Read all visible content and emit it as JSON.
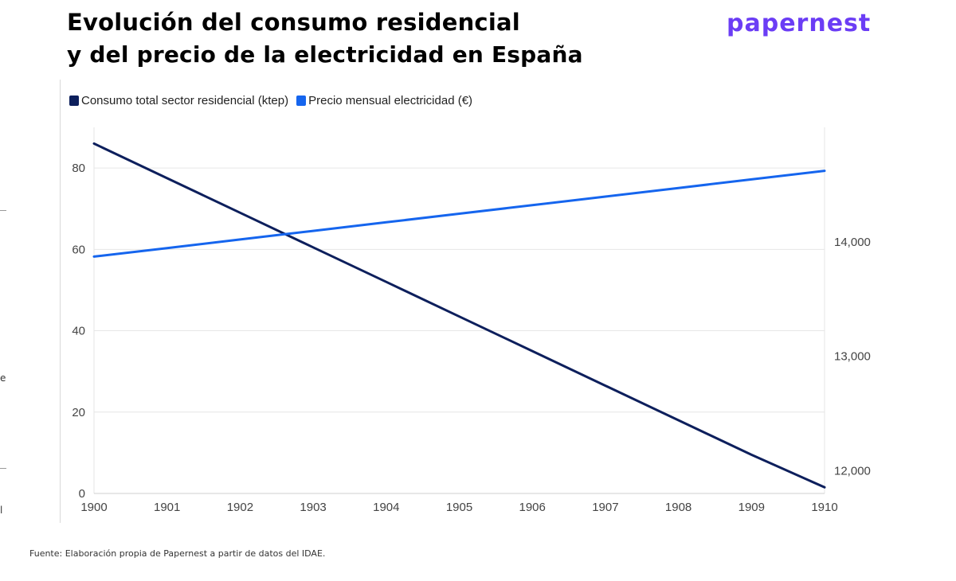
{
  "header": {
    "title_line1": "Evolución del consumo residencial",
    "title_line2": "y del precio de la electricidad en España",
    "brand": "papernest"
  },
  "footer": {
    "source": "Fuente: Elaboración propia de Papernest a partir de datos del IDAE."
  },
  "edge": {
    "mark_e": "e",
    "mark_l": "l"
  },
  "colors": {
    "brand": "#6b3df5",
    "series_consumo": "#0d1f5c",
    "series_precio": "#1565ee",
    "grid": "#e6e6e6"
  },
  "chart_data": {
    "type": "line",
    "title": "",
    "x": [
      1900,
      1901,
      1902,
      1903,
      1904,
      1905,
      1906,
      1907,
      1908,
      1909,
      1910
    ],
    "legend_position": "top-left",
    "grid": true,
    "series": [
      {
        "name": "Consumo total sector residencial (ktep)",
        "axis": "left",
        "color": "#0d1f5c",
        "values": [
          86,
          77.5,
          69,
          60.5,
          52,
          43.5,
          35,
          26.5,
          18,
          9.5,
          1.5
        ]
      },
      {
        "name": "Precio mensual electricidad (€)",
        "axis": "right",
        "color": "#1565ee",
        "values": [
          13870,
          13945,
          14020,
          14095,
          14170,
          14245,
          14320,
          14395,
          14470,
          14545,
          14620
        ]
      }
    ],
    "y_left": {
      "lim": [
        0,
        90
      ],
      "ticks": [
        0,
        20,
        40,
        60,
        80
      ],
      "tick_labels": [
        "0",
        "20",
        "40",
        "60",
        "80"
      ]
    },
    "y_right": {
      "lim": [
        11800,
        15000
      ],
      "ticks": [
        12000,
        13000,
        14000
      ],
      "tick_labels": [
        "12,000",
        "13,000",
        "14,000"
      ]
    },
    "x_tick_labels": [
      "1900",
      "1901",
      "1902",
      "1903",
      "1904",
      "1905",
      "1906",
      "1907",
      "1908",
      "1909",
      "1910"
    ]
  }
}
